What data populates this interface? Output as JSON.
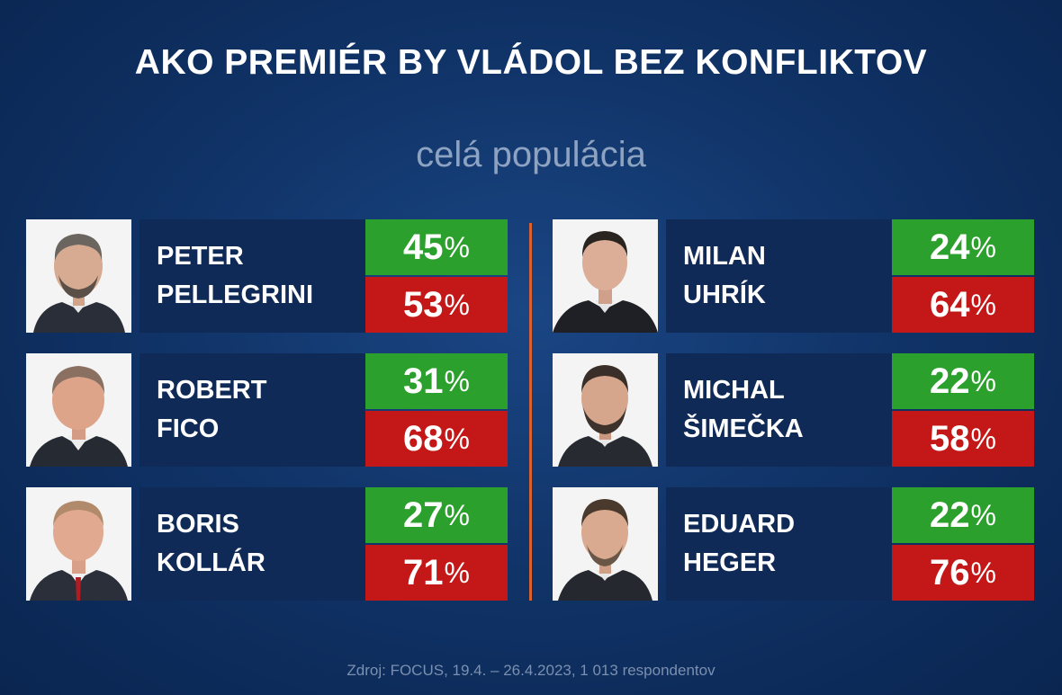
{
  "title": "AKO PREMIÉR BY VLÁDOL BEZ KONFLIKTOV",
  "subtitle": "celá populácia",
  "percent_sign": "%",
  "colors": {
    "background": "#0f3164",
    "name_box": "#102a57",
    "yes": "#2ca02c",
    "no": "#c41818",
    "divider": "#d8612f"
  },
  "left": [
    {
      "first": "PETER",
      "last": "PELLEGRINI",
      "yes": "45",
      "no": "53"
    },
    {
      "first": "ROBERT",
      "last": "FICO",
      "yes": "31",
      "no": "68"
    },
    {
      "first": "BORIS",
      "last": "KOLLÁR",
      "yes": "27",
      "no": "71"
    }
  ],
  "right": [
    {
      "first": "MILAN",
      "last": "UHRÍK",
      "yes": "24",
      "no": "64"
    },
    {
      "first": "MICHAL",
      "last": "ŠIMEČKA",
      "yes": "22",
      "no": "58"
    },
    {
      "first": "EDUARD",
      "last": "HEGER",
      "yes": "22",
      "no": "76"
    }
  ],
  "footer": "Zdroj: FOCUS, 19.4. – 26.4.2023, 1 013 respondentov"
}
